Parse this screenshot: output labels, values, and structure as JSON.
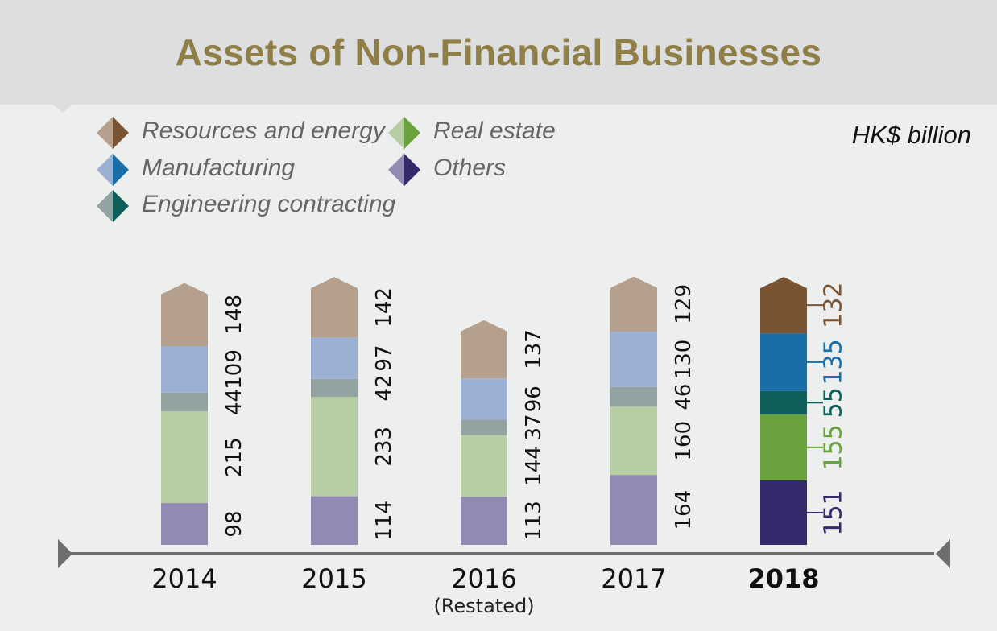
{
  "title": "Assets of Non-Financial Businesses",
  "unit": "HK$ billion",
  "legend": [
    {
      "label": "Resources and energy",
      "light": "#b5a08e",
      "dark": "#7a5432"
    },
    {
      "label": "Real estate",
      "light": "#b6cea1",
      "dark": "#6aa33d"
    },
    {
      "label": "Manufacturing",
      "light": "#9bb0d2",
      "dark": "#1a6ea8"
    },
    {
      "label": "Others",
      "light": "#918ab3",
      "dark": "#34296b"
    },
    {
      "label": "Engineering contracting",
      "light": "#93a3a1",
      "dark": "#0e5e5a"
    }
  ],
  "chart_data": {
    "type": "bar",
    "stacked": true,
    "title": "Assets of Non-Financial Businesses",
    "ylabel": "HK$ billion",
    "categories": [
      "2014",
      "2015",
      "2016",
      "2017",
      "2018"
    ],
    "category_notes": [
      "",
      "",
      "(Restated)",
      "",
      ""
    ],
    "highlight_category": "2018",
    "series": [
      {
        "name": "Others",
        "values": [
          98,
          114,
          113,
          164,
          151
        ],
        "color": "#918ab3",
        "highlight_color": "#34296b"
      },
      {
        "name": "Real estate",
        "values": [
          215,
          233,
          144,
          160,
          155
        ],
        "color": "#b6cea1",
        "highlight_color": "#6aa33d"
      },
      {
        "name": "Engineering contracting",
        "values": [
          44,
          42,
          37,
          46,
          55
        ],
        "color": "#93a3a1",
        "highlight_color": "#0e5e5a"
      },
      {
        "name": "Manufacturing",
        "values": [
          109,
          97,
          96,
          130,
          135
        ],
        "color": "#9bb0d2",
        "highlight_color": "#1a6ea8"
      },
      {
        "name": "Resources and energy",
        "values": [
          148,
          142,
          137,
          129,
          132
        ],
        "color": "#b5a08e",
        "highlight_color": "#7a5432"
      }
    ]
  }
}
